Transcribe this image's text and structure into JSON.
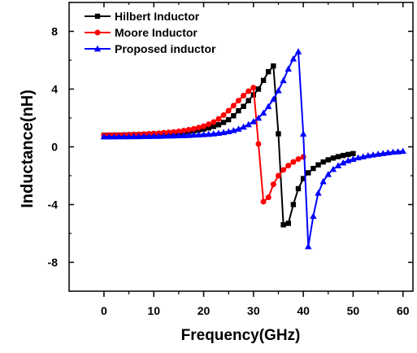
{
  "chart_data": {
    "type": "line",
    "title": "",
    "xlabel": "Frequency(GHz)",
    "ylabel": "Inductance(nH)",
    "xlim": [
      -7,
      62
    ],
    "ylim": [
      -10,
      10
    ],
    "xticks": [
      0,
      10,
      20,
      30,
      40,
      50,
      60
    ],
    "yticks": [
      8,
      4,
      0,
      -4,
      -8
    ],
    "xtick_labels": [
      "0",
      "10",
      "20",
      "30",
      "40",
      "50",
      "60"
    ],
    "ytick_labels": [
      "8",
      "4",
      "0",
      "-4",
      "-8"
    ],
    "grid": false,
    "legend_position": "top-left",
    "series": [
      {
        "name": "Hilbert Inductor",
        "color": "#000000",
        "marker": "square",
        "x": [
          0,
          1,
          2,
          3,
          4,
          5,
          6,
          7,
          8,
          9,
          10,
          11,
          12,
          13,
          14,
          15,
          16,
          17,
          18,
          19,
          20,
          21,
          22,
          23,
          24,
          25,
          26,
          27,
          28,
          29,
          30,
          31,
          32,
          33,
          34,
          35,
          36,
          37,
          38,
          39,
          40,
          41,
          42,
          43,
          44,
          45,
          46,
          47,
          48,
          49,
          50
        ],
        "y": [
          0.8,
          0.8,
          0.81,
          0.81,
          0.82,
          0.82,
          0.83,
          0.84,
          0.85,
          0.86,
          0.88,
          0.89,
          0.91,
          0.93,
          0.96,
          0.98,
          1.02,
          1.06,
          1.1,
          1.16,
          1.23,
          1.31,
          1.41,
          1.53,
          1.69,
          1.88,
          2.15,
          2.5,
          2.8,
          3.2,
          3.6,
          4.0,
          4.6,
          5.2,
          5.6,
          0.9,
          -5.4,
          -5.3,
          -4.0,
          -2.9,
          -2.2,
          -1.8,
          -1.5,
          -1.25,
          -1.05,
          -0.9,
          -0.78,
          -0.68,
          -0.6,
          -0.53,
          -0.47
        ]
      },
      {
        "name": "Moore Inductor",
        "color": "#ff0000",
        "marker": "circle",
        "x": [
          0,
          1,
          2,
          3,
          4,
          5,
          6,
          7,
          8,
          9,
          10,
          11,
          12,
          13,
          14,
          15,
          16,
          17,
          18,
          19,
          20,
          21,
          22,
          23,
          24,
          25,
          26,
          27,
          28,
          29,
          30,
          31,
          32,
          33,
          34,
          35,
          36,
          37,
          38,
          39,
          40
        ],
        "y": [
          0.8,
          0.81,
          0.81,
          0.82,
          0.83,
          0.84,
          0.85,
          0.86,
          0.88,
          0.9,
          0.92,
          0.94,
          0.97,
          1.0,
          1.03,
          1.07,
          1.12,
          1.18,
          1.25,
          1.33,
          1.43,
          1.56,
          1.72,
          1.93,
          2.2,
          2.5,
          2.85,
          3.2,
          3.55,
          3.85,
          4.1,
          0.2,
          -3.8,
          -3.5,
          -2.6,
          -2.0,
          -1.6,
          -1.3,
          -1.05,
          -0.85,
          -0.7
        ]
      },
      {
        "name": "Proposed inductor",
        "color": "#0000ff",
        "marker": "triangle",
        "x": [
          0,
          1,
          2,
          3,
          4,
          5,
          6,
          7,
          8,
          9,
          10,
          11,
          12,
          13,
          14,
          15,
          16,
          17,
          18,
          19,
          20,
          21,
          22,
          23,
          24,
          25,
          26,
          27,
          28,
          29,
          30,
          31,
          32,
          33,
          34,
          35,
          36,
          37,
          38,
          39,
          40,
          41,
          42,
          43,
          44,
          45,
          46,
          47,
          48,
          49,
          50,
          51,
          52,
          53,
          54,
          55,
          56,
          57,
          58,
          59,
          60
        ],
        "y": [
          0.7,
          0.7,
          0.7,
          0.71,
          0.71,
          0.71,
          0.72,
          0.72,
          0.73,
          0.73,
          0.74,
          0.74,
          0.75,
          0.76,
          0.77,
          0.78,
          0.79,
          0.8,
          0.82,
          0.84,
          0.86,
          0.88,
          0.91,
          0.95,
          1.0,
          1.06,
          1.14,
          1.24,
          1.38,
          1.55,
          1.75,
          2.0,
          2.35,
          2.8,
          3.3,
          3.9,
          4.6,
          5.4,
          6.1,
          6.6,
          0.9,
          -6.9,
          -4.8,
          -3.2,
          -2.4,
          -1.9,
          -1.55,
          -1.3,
          -1.1,
          -0.95,
          -0.85,
          -0.75,
          -0.68,
          -0.6,
          -0.55,
          -0.5,
          -0.45,
          -0.4,
          -0.36,
          -0.33,
          -0.3
        ]
      }
    ]
  }
}
